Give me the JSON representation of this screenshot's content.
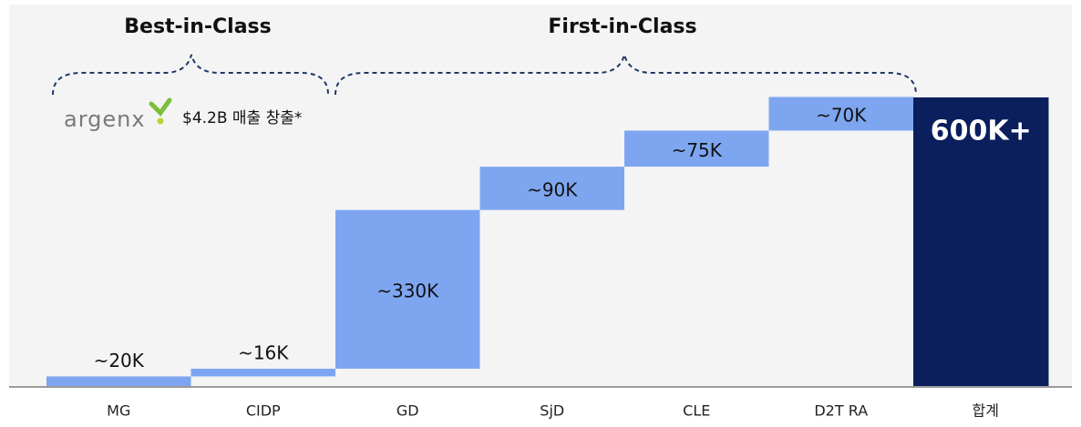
{
  "chart_data": {
    "type": "waterfall",
    "categories": [
      "MG",
      "CIDP",
      "GD",
      "SjD",
      "CLE",
      "D2T RA",
      "합계"
    ],
    "values": [
      20000,
      16000,
      330000,
      90000,
      75000,
      70000,
      600000
    ],
    "value_labels": [
      "~20K",
      "~16K",
      "~330K",
      "~90K",
      "~75K",
      "~70K",
      "600K+"
    ],
    "color": "#7ea6f0",
    "total_color": "#0b1f5c",
    "annotations": {
      "best": "Best-in-Class",
      "first": "First-in-Class",
      "logo": "argenx",
      "note": "$4.2B 매출 창출*"
    }
  }
}
